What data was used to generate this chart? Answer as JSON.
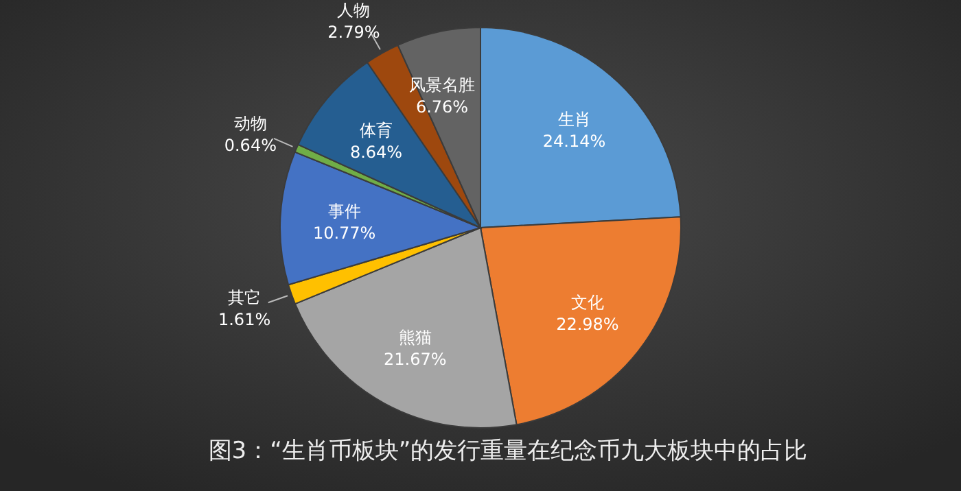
{
  "chart_data": {
    "type": "pie",
    "title": "图3：“生肖币板块”的发行重量在纪念币九大板块中的占比",
    "categories": [
      "生肖",
      "文化",
      "熊猫",
      "其它",
      "事件",
      "动物",
      "体育",
      "人物",
      "风景名胜"
    ],
    "values": [
      24.14,
      22.98,
      21.67,
      1.61,
      10.77,
      0.64,
      8.64,
      2.79,
      6.76
    ],
    "value_labels": [
      "24.14%",
      "22.98%",
      "21.67%",
      "1.61%",
      "10.77%",
      "0.64%",
      "8.64%",
      "2.79%",
      "6.76%"
    ],
    "colors": [
      "#5b9bd5",
      "#ed7d31",
      "#a5a5a5",
      "#ffc000",
      "#4472c4",
      "#70ad47",
      "#255e91",
      "#9e480e",
      "#636363"
    ]
  }
}
